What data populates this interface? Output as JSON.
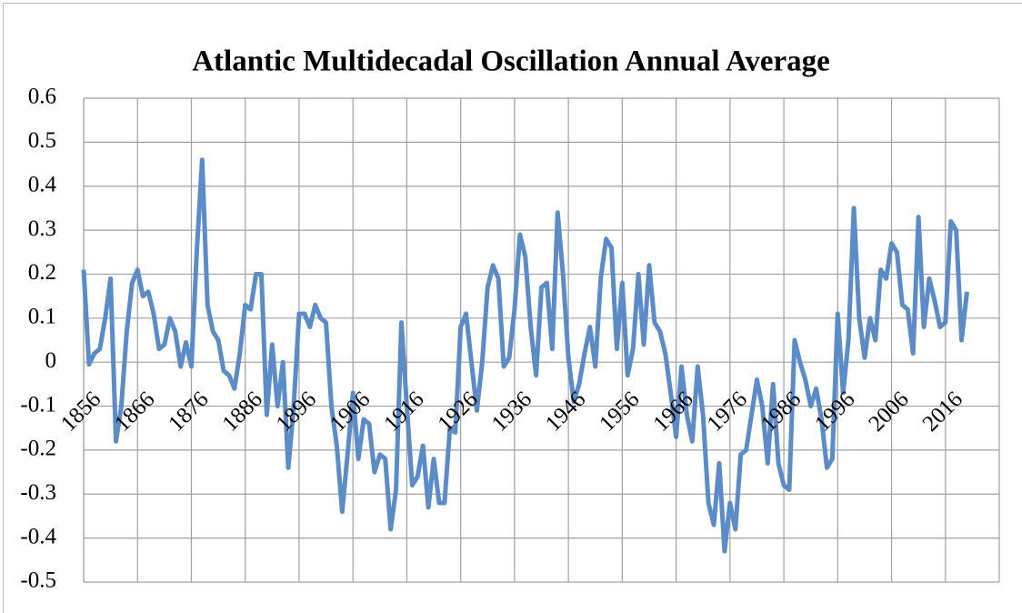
{
  "chart_data": {
    "type": "line",
    "title": "Atlantic Multidecadal Oscillation Annual Average",
    "x": [
      1856,
      1857,
      1858,
      1859,
      1860,
      1861,
      1862,
      1863,
      1864,
      1865,
      1866,
      1867,
      1868,
      1869,
      1870,
      1871,
      1872,
      1873,
      1874,
      1875,
      1876,
      1877,
      1878,
      1879,
      1880,
      1881,
      1882,
      1883,
      1884,
      1885,
      1886,
      1887,
      1888,
      1889,
      1890,
      1891,
      1892,
      1893,
      1894,
      1895,
      1896,
      1897,
      1898,
      1899,
      1900,
      1901,
      1902,
      1903,
      1904,
      1905,
      1906,
      1907,
      1908,
      1909,
      1910,
      1911,
      1912,
      1913,
      1914,
      1915,
      1916,
      1917,
      1918,
      1919,
      1920,
      1921,
      1922,
      1923,
      1924,
      1925,
      1926,
      1927,
      1928,
      1929,
      1930,
      1931,
      1932,
      1933,
      1934,
      1935,
      1936,
      1937,
      1938,
      1939,
      1940,
      1941,
      1942,
      1943,
      1944,
      1945,
      1946,
      1947,
      1948,
      1949,
      1950,
      1951,
      1952,
      1953,
      1954,
      1955,
      1956,
      1957,
      1958,
      1959,
      1960,
      1961,
      1962,
      1963,
      1964,
      1965,
      1966,
      1967,
      1968,
      1969,
      1970,
      1971,
      1972,
      1973,
      1974,
      1975,
      1976,
      1977,
      1978,
      1979,
      1980,
      1981,
      1982,
      1983,
      1984,
      1985,
      1986,
      1987,
      1988,
      1989,
      1990,
      1991,
      1992,
      1993,
      1994,
      1995,
      1996,
      1997,
      1998,
      1999,
      2000,
      2001,
      2002,
      2003,
      2004,
      2005,
      2006,
      2007,
      2008,
      2009,
      2010,
      2011,
      2012,
      2013,
      2014,
      2015,
      2016,
      2017,
      2018,
      2019,
      2020
    ],
    "series": [
      {
        "color": "#5b8cc8",
        "values": [
          0.21,
          -0.005,
          0.02,
          0.03,
          0.1,
          0.19,
          -0.18,
          -0.1,
          0.07,
          0.18,
          0.21,
          0.15,
          0.16,
          0.11,
          0.03,
          0.04,
          0.1,
          0.07,
          -0.01,
          0.045,
          -0.01,
          0.25,
          0.46,
          0.13,
          0.07,
          0.05,
          -0.02,
          -0.03,
          -0.06,
          0.02,
          0.13,
          0.12,
          0.2,
          0.2,
          -0.12,
          0.04,
          -0.1,
          0,
          -0.24,
          -0.1,
          0.11,
          0.11,
          0.08,
          0.13,
          0.1,
          0.09,
          -0.1,
          -0.19,
          -0.34,
          -0.21,
          -0.07,
          -0.22,
          -0.13,
          -0.14,
          -0.25,
          -0.21,
          -0.22,
          -0.38,
          -0.29,
          0.09,
          -0.1,
          -0.28,
          -0.26,
          -0.19,
          -0.33,
          -0.22,
          -0.32,
          -0.32,
          -0.15,
          -0.16,
          0.08,
          0.11,
          0,
          -0.11,
          0,
          0.17,
          0.22,
          0.19,
          -0.01,
          0.01,
          0.12,
          0.29,
          0.24,
          0.08,
          -0.03,
          0.17,
          0.18,
          0.03,
          0.34,
          0.2,
          0.01,
          -0.09,
          -0.05,
          0.02,
          0.08,
          -0.01,
          0.19,
          0.28,
          0.26,
          0.03,
          0.18,
          -0.03,
          0.03,
          0.2,
          0.04,
          0.22,
          0.09,
          0.07,
          0.02,
          -0.07,
          -0.17,
          -0.01,
          -0.12,
          -0.18,
          -0.01,
          -0.12,
          -0.32,
          -0.37,
          -0.23,
          -0.43,
          -0.32,
          -0.38,
          -0.21,
          -0.2,
          -0.12,
          -0.04,
          -0.1,
          -0.23,
          -0.05,
          -0.23,
          -0.28,
          -0.29,
          0.05,
          0,
          -0.04,
          -0.1,
          -0.06,
          -0.13,
          -0.24,
          -0.22,
          0.11,
          -0.07,
          0.05,
          0.35,
          0.1,
          0.01,
          0.1,
          0.05,
          0.21,
          0.19,
          0.27,
          0.25,
          0.13,
          0.12,
          0.02,
          0.33,
          0.08,
          0.19,
          0.14,
          0.08,
          0.09,
          0.32,
          0.3,
          0.05,
          0.16
        ]
      }
    ],
    "xlim": [
      1856,
      2026
    ],
    "xticks": [
      1856,
      1866,
      1876,
      1886,
      1896,
      1906,
      1916,
      1926,
      1936,
      1946,
      1956,
      1966,
      1976,
      1986,
      1996,
      2006,
      2016
    ],
    "ylim": [
      -0.5,
      0.6
    ],
    "yticks": [
      0.6,
      0.5,
      0.4,
      0.3,
      0.2,
      0.1,
      0,
      -0.1,
      -0.2,
      -0.3,
      -0.4,
      -0.5
    ],
    "grid": true
  }
}
